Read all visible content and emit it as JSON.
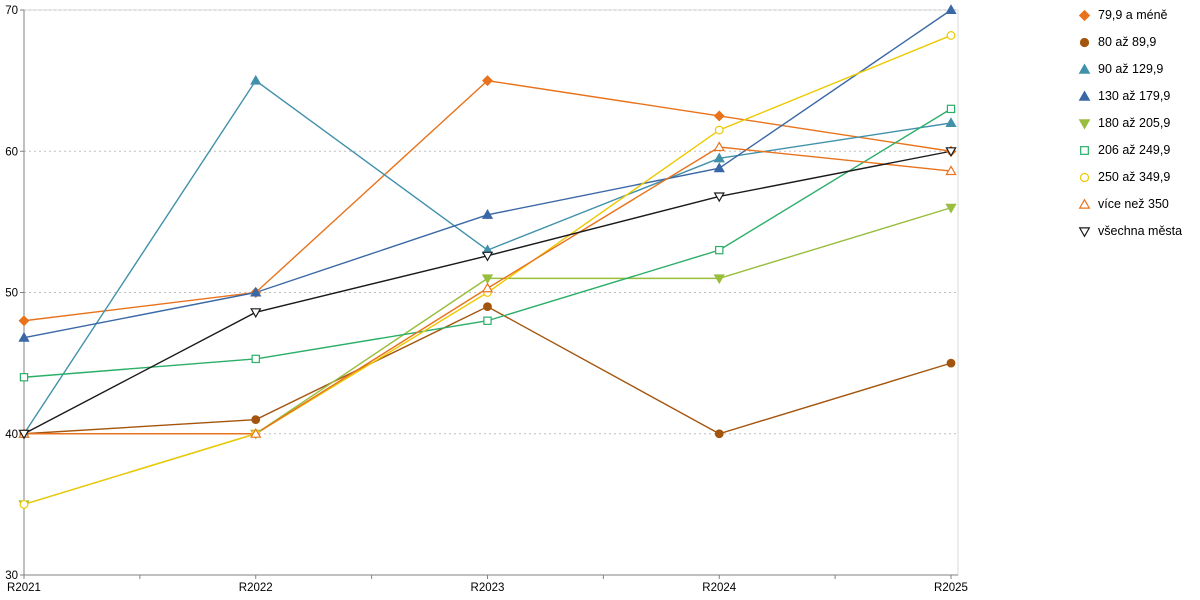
{
  "chart_data": {
    "type": "line",
    "title": "",
    "xlabel": "",
    "ylabel": "",
    "categories": [
      "R2021",
      "R2022",
      "R2023",
      "R2024",
      "R2025"
    ],
    "ylim": [
      30,
      70
    ],
    "y_ticks": [
      30,
      40,
      50,
      60,
      70
    ],
    "grid": "horizontal-dotted",
    "legend_position": "top-right",
    "axis_color": "#808080",
    "grid_color": "#bfbfbf",
    "series": [
      {
        "name": "79,9 a méně",
        "color": "#E8731C",
        "marker": "diamond",
        "fill": "filled",
        "values": [
          48,
          50,
          65,
          62.5,
          60
        ]
      },
      {
        "name": "80 až 89,9",
        "color": "#A3550E",
        "marker": "circle",
        "fill": "filled",
        "values": [
          40,
          41,
          49,
          40,
          45
        ]
      },
      {
        "name": "90 až 129,9",
        "color": "#4191AB",
        "marker": "triangle-up",
        "fill": "filled",
        "values": [
          40,
          65,
          53,
          59.5,
          62
        ]
      },
      {
        "name": "130 až 179,9",
        "color": "#3A68A6",
        "marker": "triangle-up",
        "fill": "filled",
        "values": [
          46.8,
          50,
          55.5,
          58.8,
          70
        ]
      },
      {
        "name": "180 až 205,9",
        "color": "#99BE3E",
        "marker": "triangle-down",
        "fill": "filled",
        "values": [
          35,
          40,
          51,
          51,
          56
        ]
      },
      {
        "name": "206 až 249,9",
        "color": "#2BAE68",
        "marker": "square",
        "fill": "open",
        "values": [
          44,
          45.3,
          48,
          53,
          63
        ]
      },
      {
        "name": "250 až 349,9",
        "color": "#EEC900",
        "marker": "circle",
        "fill": "open",
        "values": [
          35,
          40,
          50,
          61.5,
          68.2
        ]
      },
      {
        "name": "více než 350",
        "color": "#E8731C",
        "marker": "triangle-up",
        "fill": "open",
        "values": [
          40,
          40,
          50.3,
          60.3,
          58.6
        ]
      },
      {
        "name": "všechna města",
        "color": "#1A1A1A",
        "marker": "triangle-down",
        "fill": "open",
        "values": [
          40,
          48.6,
          52.6,
          56.8,
          60
        ]
      }
    ]
  }
}
